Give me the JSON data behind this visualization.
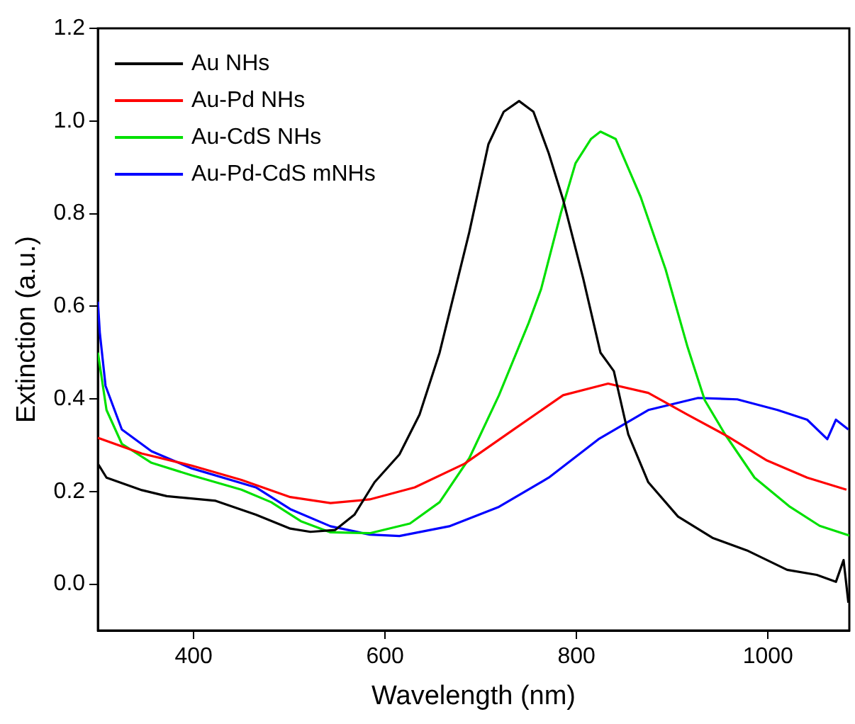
{
  "chart_data": {
    "type": "line",
    "xlabel": "Wavelength (nm)",
    "ylabel": "Extinction (a.u.)",
    "xlim": [
      300,
      1085
    ],
    "xticks": [
      400,
      600,
      800,
      1000
    ],
    "ylim": [
      -0.1,
      1.2
    ],
    "yticks": [
      {
        "value": 0,
        "label": "0.0"
      },
      0.2,
      0.4,
      0.6,
      0.8,
      {
        "value": 1,
        "label": "1.0"
      },
      1.2
    ],
    "grid": false,
    "legend": "top left",
    "marker": "none",
    "line_style": "solid",
    "series": [
      {
        "name": "Au NHs",
        "color": "#000000",
        "x": [
          300,
          309,
          346,
          372,
          423,
          465,
          501,
          522,
          548,
          568,
          589,
          615,
          636,
          657,
          688,
          708,
          724,
          740,
          755,
          771,
          786,
          807,
          825,
          839,
          854,
          875,
          906,
          942,
          978,
          1020,
          1051,
          1071,
          1079,
          1084
        ],
        "values": [
          0.26,
          0.23,
          0.203,
          0.19,
          0.18,
          0.15,
          0.12,
          0.113,
          0.117,
          0.15,
          0.22,
          0.28,
          0.366,
          0.5,
          0.76,
          0.95,
          1.02,
          1.043,
          1.02,
          0.93,
          0.83,
          0.66,
          0.5,
          0.46,
          0.324,
          0.22,
          0.146,
          0.1,
          0.073,
          0.031,
          0.02,
          0.005,
          0.052,
          -0.04
        ]
      },
      {
        "name": "Au-Pd NHs",
        "color": "#ff0000",
        "x": [
          300,
          346,
          398,
          450,
          501,
          543,
          584,
          631,
          683,
          735,
          786,
          833,
          875,
          916,
          958,
          999,
          1041,
          1082
        ],
        "values": [
          0.316,
          0.282,
          0.256,
          0.225,
          0.188,
          0.175,
          0.183,
          0.209,
          0.26,
          0.335,
          0.408,
          0.433,
          0.413,
          0.366,
          0.319,
          0.267,
          0.23,
          0.204
        ]
      },
      {
        "name": "Au-CdS NHs",
        "color": "#00e000",
        "x": [
          300,
          309,
          325,
          356,
          398,
          450,
          481,
          512,
          543,
          584,
          626,
          657,
          688,
          719,
          750,
          763,
          784,
          799,
          815,
          825,
          841,
          867,
          893,
          916,
          934,
          955,
          986,
          1023,
          1054,
          1085
        ],
        "values": [
          0.5,
          0.376,
          0.303,
          0.262,
          0.235,
          0.204,
          0.177,
          0.136,
          0.112,
          0.11,
          0.131,
          0.177,
          0.272,
          0.408,
          0.564,
          0.637,
          0.804,
          0.909,
          0.961,
          0.977,
          0.961,
          0.836,
          0.68,
          0.512,
          0.397,
          0.324,
          0.23,
          0.167,
          0.126,
          0.105
        ]
      },
      {
        "name": "Au-Pd-CdS mNHs",
        "color": "#0000ff",
        "x": [
          300,
          302,
          308,
          325,
          356,
          398,
          465,
          501,
          543,
          584,
          615,
          667,
          719,
          771,
          823,
          875,
          927,
          968,
          1010,
          1041,
          1062,
          1071,
          1084
        ],
        "values": [
          0.61,
          0.543,
          0.428,
          0.334,
          0.287,
          0.25,
          0.209,
          0.162,
          0.125,
          0.107,
          0.104,
          0.125,
          0.167,
          0.23,
          0.313,
          0.376,
          0.402,
          0.399,
          0.376,
          0.355,
          0.313,
          0.355,
          0.334
        ]
      }
    ]
  }
}
